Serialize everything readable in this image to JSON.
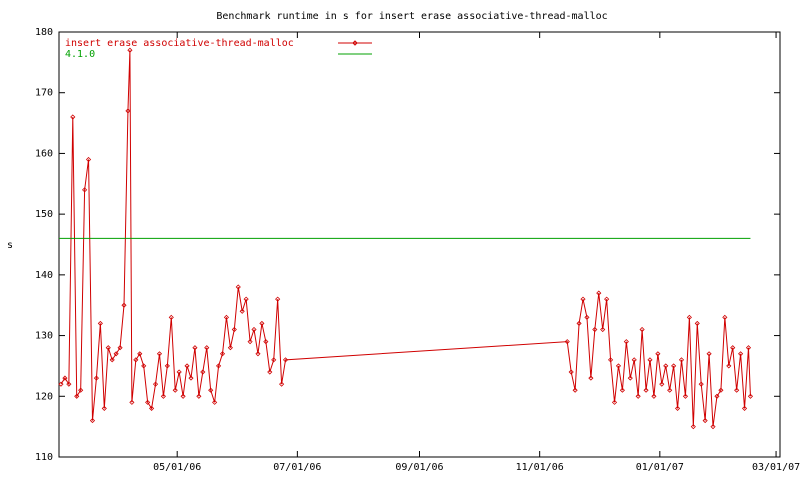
{
  "chart_data": {
    "type": "line",
    "title": "Benchmark runtime in s for insert erase associative-thread-malloc",
    "y_label": "s",
    "series": [
      {
        "name": "insert erase associative-thread-malloc",
        "color": "#d00000",
        "markers": true,
        "x": [
          "2006-03-03",
          "2006-03-05",
          "2006-03-07",
          "2006-03-09",
          "2006-03-11",
          "2006-03-13",
          "2006-03-15",
          "2006-03-17",
          "2006-03-19",
          "2006-03-21",
          "2006-03-23",
          "2006-03-25",
          "2006-03-27",
          "2006-03-29",
          "2006-03-31",
          "2006-04-02",
          "2006-04-04",
          "2006-04-06",
          "2006-04-07",
          "2006-04-08",
          "2006-04-10",
          "2006-04-12",
          "2006-04-14",
          "2006-04-16",
          "2006-04-18",
          "2006-04-20",
          "2006-04-22",
          "2006-04-24",
          "2006-04-26",
          "2006-04-28",
          "2006-04-30",
          "2006-05-02",
          "2006-05-04",
          "2006-05-06",
          "2006-05-08",
          "2006-05-10",
          "2006-05-12",
          "2006-05-14",
          "2006-05-16",
          "2006-05-18",
          "2006-05-20",
          "2006-05-22",
          "2006-05-24",
          "2006-05-26",
          "2006-05-28",
          "2006-05-30",
          "2006-06-01",
          "2006-06-03",
          "2006-06-05",
          "2006-06-07",
          "2006-06-09",
          "2006-06-11",
          "2006-06-13",
          "2006-06-15",
          "2006-06-17",
          "2006-06-19",
          "2006-06-21",
          "2006-06-23",
          "2006-06-25",
          "2006-11-15",
          "2006-11-17",
          "2006-11-19",
          "2006-11-21",
          "2006-11-23",
          "2006-11-25",
          "2006-11-27",
          "2006-11-29",
          "2006-12-01",
          "2006-12-03",
          "2006-12-05",
          "2006-12-07",
          "2006-12-09",
          "2006-12-11",
          "2006-12-13",
          "2006-12-15",
          "2006-12-17",
          "2006-12-19",
          "2006-12-21",
          "2006-12-23",
          "2006-12-25",
          "2006-12-27",
          "2006-12-29",
          "2006-12-31",
          "2007-01-02",
          "2007-01-04",
          "2007-01-06",
          "2007-01-08",
          "2007-01-10",
          "2007-01-12",
          "2007-01-14",
          "2007-01-16",
          "2007-01-18",
          "2007-01-20",
          "2007-01-22",
          "2007-01-24",
          "2007-01-26",
          "2007-01-28",
          "2007-01-30",
          "2007-02-01",
          "2007-02-03",
          "2007-02-05",
          "2007-02-07",
          "2007-02-09",
          "2007-02-11",
          "2007-02-13",
          "2007-02-15",
          "2007-02-16"
        ],
        "values": [
          122,
          123,
          122,
          166,
          120,
          121,
          154,
          159,
          116,
          123,
          132,
          118,
          128,
          126,
          127,
          128,
          135,
          167,
          177,
          119,
          126,
          127,
          125,
          119,
          118,
          122,
          127,
          120,
          125,
          133,
          121,
          124,
          120,
          125,
          123,
          128,
          120,
          124,
          128,
          121,
          119,
          125,
          127,
          133,
          128,
          131,
          138,
          134,
          136,
          129,
          131,
          127,
          132,
          129,
          124,
          126,
          136,
          122,
          126,
          129,
          124,
          121,
          132,
          136,
          133,
          123,
          131,
          137,
          131,
          136,
          126,
          119,
          125,
          121,
          129,
          123,
          126,
          120,
          131,
          121,
          126,
          120,
          127,
          122,
          125,
          121,
          125,
          118,
          126,
          120,
          133,
          115,
          132,
          122,
          116,
          127,
          115,
          120,
          121,
          133,
          125,
          128,
          121,
          127,
          118,
          128,
          120
        ]
      },
      {
        "name": "4.1.0",
        "color": "#00a000",
        "markers": false,
        "x": [
          "2006-03-02",
          "2007-02-16"
        ],
        "values": [
          146,
          146
        ]
      }
    ],
    "xlim": [
      "2006-03-02",
      "2007-03-03"
    ],
    "xticks": [
      {
        "value": "2006-05-01",
        "label": "05/01/06"
      },
      {
        "value": "2006-07-01",
        "label": "07/01/06"
      },
      {
        "value": "2006-09-01",
        "label": "09/01/06"
      },
      {
        "value": "2006-11-01",
        "label": "11/01/06"
      },
      {
        "value": "2007-01-01",
        "label": "01/01/07"
      },
      {
        "value": "2007-03-01",
        "label": "03/01/07"
      }
    ],
    "ylim": [
      110,
      180
    ],
    "yticks": [
      110,
      120,
      130,
      140,
      150,
      160,
      170,
      180
    ],
    "legend": "top-left"
  }
}
